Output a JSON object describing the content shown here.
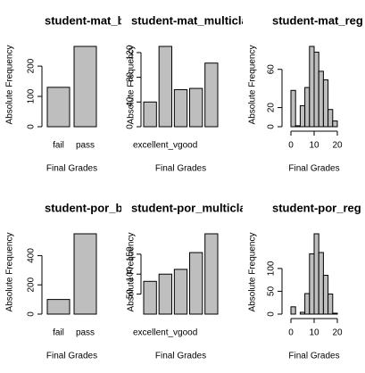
{
  "chart_data": [
    {
      "type": "bar",
      "title": "student-mat_binary",
      "xlabel": "Final Grades",
      "ylabel": "Absolute Frequency",
      "categories": [
        "fail",
        "pass"
      ],
      "values": [
        130,
        265
      ],
      "color": "#bebebe",
      "ylim": [
        0,
        265
      ],
      "yticks": [
        0,
        100,
        200
      ]
    },
    {
      "type": "bar",
      "title": "student-mat_multicla",
      "xlabel": "Final Grades",
      "ylabel": "Absolute Frequency",
      "categories": [
        "excellent_vgood",
        null,
        null,
        null,
        null
      ],
      "values": [
        40,
        130,
        60,
        62,
        103
      ],
      "color": "#bebebe",
      "ylim": [
        0,
        130
      ],
      "yticks": [
        0,
        40,
        80,
        120
      ]
    },
    {
      "type": "histogram",
      "title": "student-mat_reg",
      "xlabel": "Final Grades",
      "ylabel": "Absolute Frequency",
      "bins": [
        0,
        2,
        4,
        6,
        8,
        10,
        12,
        14,
        16,
        18,
        20
      ],
      "values": [
        38,
        1,
        22,
        41,
        84,
        78,
        58,
        49,
        18,
        6
      ],
      "color": "#bebebe",
      "xlim": [
        0,
        20
      ],
      "xticks": [
        0,
        10,
        20
      ],
      "ylim": [
        0,
        84
      ],
      "yticks": [
        0,
        20,
        60
      ]
    },
    {
      "type": "bar",
      "title": "student-por_binary",
      "xlabel": "Final Grades",
      "ylabel": "Absolute Frequency",
      "categories": [
        "fail",
        "pass"
      ],
      "values": [
        100,
        549
      ],
      "color": "#bebebe",
      "ylim": [
        0,
        549
      ],
      "yticks": [
        0,
        200,
        400
      ]
    },
    {
      "type": "bar",
      "title": "student-por_multicla",
      "xlabel": "Final Grades",
      "ylabel": "Absolute Frequency",
      "categories": [
        "excellent_vgood",
        null,
        null,
        null,
        null
      ],
      "values": [
        82,
        100,
        112,
        154,
        201
      ],
      "color": "#bebebe",
      "ylim": [
        0,
        201
      ],
      "yticks": [
        50,
        100,
        150
      ]
    },
    {
      "type": "histogram",
      "title": "student-por_reg",
      "xlabel": "Final Grades",
      "ylabel": "Absolute Frequency",
      "bins": [
        0,
        2,
        4,
        6,
        8,
        10,
        12,
        14,
        16,
        18,
        20
      ],
      "values": [
        16,
        0,
        4,
        45,
        132,
        176,
        135,
        85,
        44,
        2
      ],
      "color": "#bebebe",
      "xlim": [
        0,
        20
      ],
      "xticks": [
        0,
        10,
        20
      ],
      "ylim": [
        0,
        176
      ],
      "yticks": [
        0,
        50,
        100
      ]
    }
  ]
}
